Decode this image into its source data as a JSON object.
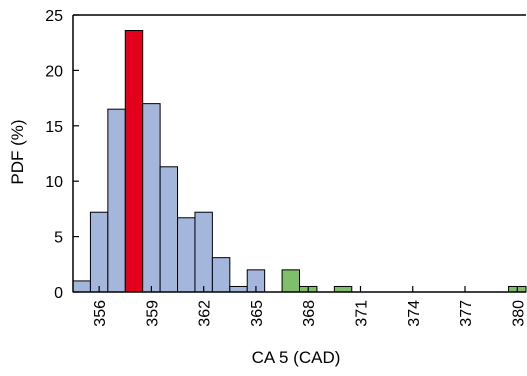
{
  "chart_data": {
    "type": "bar",
    "xlabel": "CA 5 (CAD)",
    "ylabel": "PDF (%)",
    "ylim": [
      0,
      25
    ],
    "xlim": [
      354.5,
      380.5
    ],
    "yticks": [
      0,
      5,
      10,
      15,
      20,
      25
    ],
    "xticks": [
      356,
      359,
      362,
      365,
      368,
      371,
      374,
      377,
      380
    ],
    "bin_width": 1,
    "grid": false,
    "legend": "none",
    "bars": [
      {
        "x": 355,
        "value": 1.0,
        "group": "blue"
      },
      {
        "x": 356,
        "value": 7.2,
        "group": "blue"
      },
      {
        "x": 357,
        "value": 16.5,
        "group": "blue"
      },
      {
        "x": 358,
        "value": 23.6,
        "group": "red"
      },
      {
        "x": 359,
        "value": 17.0,
        "group": "blue"
      },
      {
        "x": 360,
        "value": 11.3,
        "group": "blue"
      },
      {
        "x": 361,
        "value": 6.7,
        "group": "blue"
      },
      {
        "x": 362,
        "value": 7.2,
        "group": "blue"
      },
      {
        "x": 363,
        "value": 3.1,
        "group": "blue"
      },
      {
        "x": 364,
        "value": 0.5,
        "group": "blue"
      },
      {
        "x": 365,
        "value": 2.0,
        "group": "blue"
      },
      {
        "x": 366,
        "value": 0.0,
        "group": "blue"
      },
      {
        "x": 367,
        "value": 2.0,
        "group": "green"
      },
      {
        "x": 368,
        "value": 0.5,
        "group": "green"
      },
      {
        "x": 369,
        "value": 0.0,
        "group": "green"
      },
      {
        "x": 370,
        "value": 0.5,
        "group": "green"
      },
      {
        "x": 371,
        "value": 0.0,
        "group": "green"
      },
      {
        "x": 372,
        "value": 0.0,
        "group": "green"
      },
      {
        "x": 373,
        "value": 0.0,
        "group": "green"
      },
      {
        "x": 374,
        "value": 0.0,
        "group": "green"
      },
      {
        "x": 375,
        "value": 0.0,
        "group": "green"
      },
      {
        "x": 376,
        "value": 0.0,
        "group": "green"
      },
      {
        "x": 377,
        "value": 0.0,
        "group": "green"
      },
      {
        "x": 378,
        "value": 0.0,
        "group": "green"
      },
      {
        "x": 379,
        "value": 0.0,
        "group": "green"
      },
      {
        "x": 380,
        "value": 0.5,
        "group": "green"
      }
    ],
    "colors": {
      "blue": "#a4b6db",
      "red": "#e3001b",
      "green": "#7fbf6b",
      "axis": "#000000"
    }
  }
}
